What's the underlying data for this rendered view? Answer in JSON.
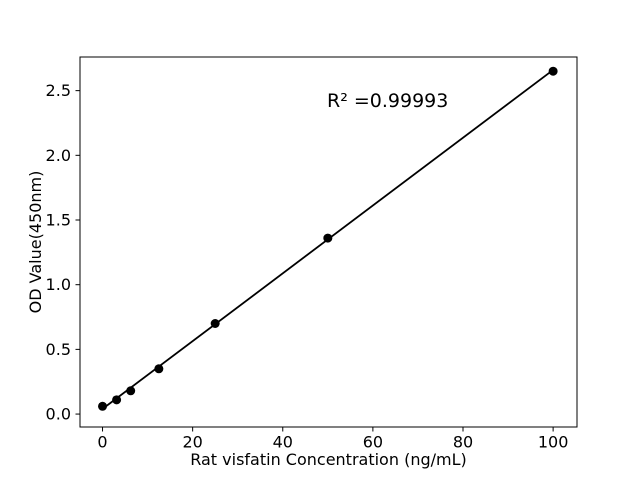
{
  "figure": {
    "background": "#ffffff",
    "axes_color": "#000000"
  },
  "chart_data": {
    "type": "scatter",
    "title": "",
    "xlabel": "Rat visfatin Concentration (ng/mL)",
    "ylabel": "OD Value(450nm)",
    "annotation": "R² =0.99993",
    "r_squared": 0.99993,
    "x": [
      0,
      3.125,
      6.25,
      12.5,
      25,
      50,
      100
    ],
    "y": [
      0.06,
      0.11,
      0.18,
      0.35,
      0.7,
      1.36,
      2.65
    ],
    "fit_line": {
      "x": [
        0,
        100
      ],
      "y": [
        0.04,
        2.66
      ]
    },
    "xlim": [
      -5,
      105.3
    ],
    "ylim": [
      -0.1,
      2.76
    ],
    "xticks": [
      0,
      20,
      40,
      60,
      80,
      100
    ],
    "xtick_labels": [
      "0",
      "20",
      "40",
      "60",
      "80",
      "100"
    ],
    "yticks": [
      0.0,
      0.5,
      1.0,
      1.5,
      2.0,
      2.5
    ],
    "ytick_labels": [
      "0.0",
      "0.5",
      "1.0",
      "1.5",
      "2.0",
      "2.5"
    ],
    "marker_color": "#000000",
    "line_color": "#000000",
    "grid": false,
    "legend": null
  }
}
